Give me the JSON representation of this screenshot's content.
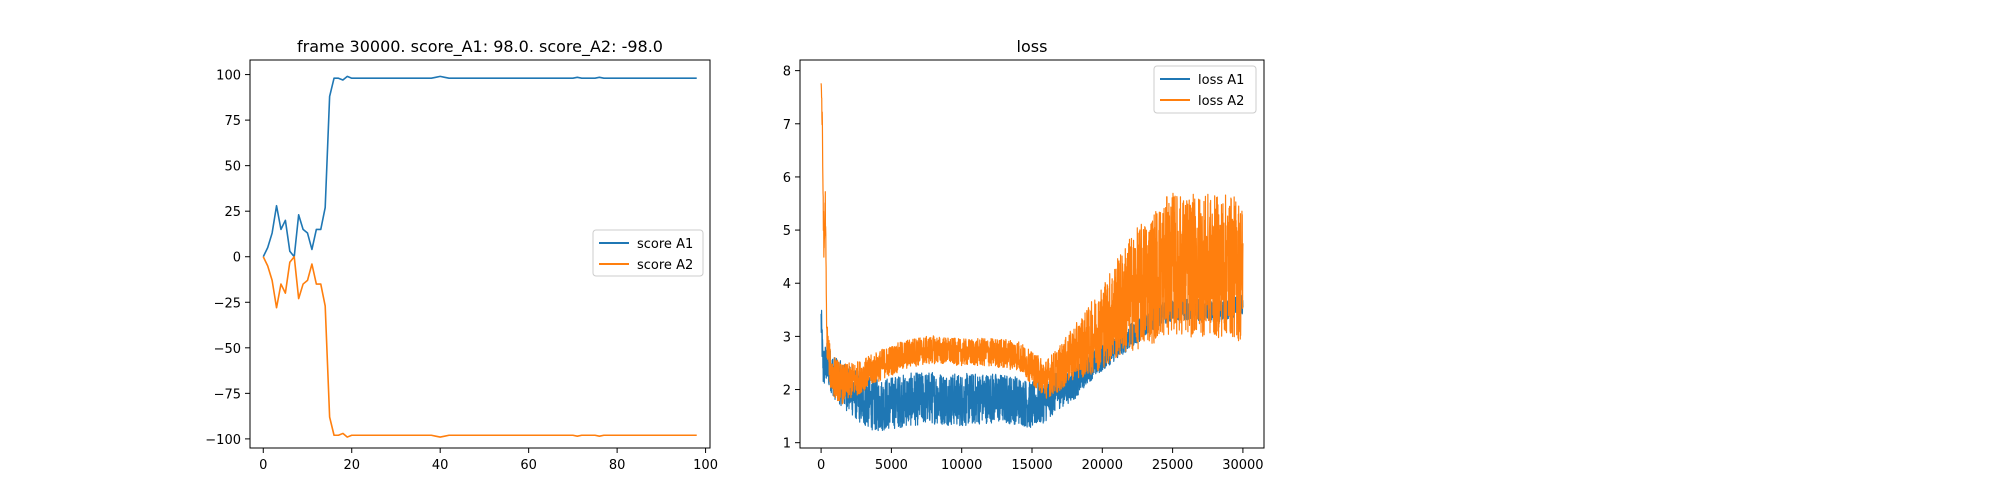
{
  "chart_data": [
    {
      "type": "line",
      "title": "frame 30000. score_A1: 98.0. score_A2: -98.0",
      "xlabel": "",
      "ylabel": "",
      "xlim": [
        -3,
        101
      ],
      "ylim": [
        -105,
        108
      ],
      "x_ticks": [
        0,
        20,
        40,
        60,
        80,
        100
      ],
      "y_ticks": [
        -100,
        -75,
        -50,
        -25,
        0,
        25,
        50,
        75,
        100
      ],
      "x_tick_labels": [
        "0",
        "20",
        "40",
        "60",
        "80",
        "100"
      ],
      "y_tick_labels": [
        "−100",
        "−75",
        "−50",
        "−25",
        "0",
        "25",
        "50",
        "75",
        "100"
      ],
      "legend": {
        "position": "center-right"
      },
      "series": [
        {
          "name": "score A1",
          "color": "#1f77b4",
          "points": [
            [
              0,
              0
            ],
            [
              1,
              5
            ],
            [
              2,
              13
            ],
            [
              3,
              28
            ],
            [
              4,
              15
            ],
            [
              5,
              20
            ],
            [
              6,
              3
            ],
            [
              7,
              0
            ],
            [
              8,
              23
            ],
            [
              9,
              15
            ],
            [
              10,
              13
            ],
            [
              11,
              4
            ],
            [
              12,
              15
            ],
            [
              13,
              15
            ],
            [
              14,
              27
            ],
            [
              15,
              88
            ],
            [
              16,
              98
            ],
            [
              17,
              98
            ],
            [
              18,
              97
            ],
            [
              19,
              99
            ],
            [
              20,
              98
            ],
            [
              25,
              98
            ],
            [
              30,
              98
            ],
            [
              35,
              98
            ],
            [
              38,
              98
            ],
            [
              39,
              98.5
            ],
            [
              40,
              99
            ],
            [
              41,
              98.5
            ],
            [
              42,
              98
            ],
            [
              45,
              98
            ],
            [
              50,
              98
            ],
            [
              55,
              98
            ],
            [
              60,
              98
            ],
            [
              65,
              98
            ],
            [
              70,
              98
            ],
            [
              71,
              98.5
            ],
            [
              72,
              98
            ],
            [
              75,
              98
            ],
            [
              76,
              98.5
            ],
            [
              77,
              98
            ],
            [
              80,
              98
            ],
            [
              85,
              98
            ],
            [
              90,
              98
            ],
            [
              95,
              98
            ],
            [
              98,
              98
            ]
          ]
        },
        {
          "name": "score A2",
          "color": "#ff7f0e",
          "points": [
            [
              0,
              0
            ],
            [
              1,
              -5
            ],
            [
              2,
              -13
            ],
            [
              3,
              -28
            ],
            [
              4,
              -15
            ],
            [
              5,
              -20
            ],
            [
              6,
              -3
            ],
            [
              7,
              0
            ],
            [
              8,
              -23
            ],
            [
              9,
              -15
            ],
            [
              10,
              -13
            ],
            [
              11,
              -4
            ],
            [
              12,
              -15
            ],
            [
              13,
              -15
            ],
            [
              14,
              -27
            ],
            [
              15,
              -88
            ],
            [
              16,
              -98
            ],
            [
              17,
              -98
            ],
            [
              18,
              -97
            ],
            [
              19,
              -99
            ],
            [
              20,
              -98
            ],
            [
              25,
              -98
            ],
            [
              30,
              -98
            ],
            [
              35,
              -98
            ],
            [
              38,
              -98
            ],
            [
              39,
              -98.5
            ],
            [
              40,
              -99
            ],
            [
              41,
              -98.5
            ],
            [
              42,
              -98
            ],
            [
              45,
              -98
            ],
            [
              50,
              -98
            ],
            [
              55,
              -98
            ],
            [
              60,
              -98
            ],
            [
              65,
              -98
            ],
            [
              70,
              -98
            ],
            [
              71,
              -98.5
            ],
            [
              72,
              -98
            ],
            [
              75,
              -98
            ],
            [
              76,
              -98.5
            ],
            [
              77,
              -98
            ],
            [
              80,
              -98
            ],
            [
              85,
              -98
            ],
            [
              90,
              -98
            ],
            [
              95,
              -98
            ],
            [
              98,
              -98
            ]
          ]
        }
      ]
    },
    {
      "type": "line",
      "title": "loss",
      "xlabel": "",
      "ylabel": "",
      "xlim": [
        -1500,
        31500
      ],
      "ylim": [
        0.9,
        8.2
      ],
      "x_ticks": [
        0,
        5000,
        10000,
        15000,
        20000,
        25000,
        30000
      ],
      "y_ticks": [
        1,
        2,
        3,
        4,
        5,
        6,
        7,
        8
      ],
      "x_tick_labels": [
        "0",
        "5000",
        "10000",
        "15000",
        "20000",
        "25000",
        "30000"
      ],
      "y_tick_labels": [
        "1",
        "2",
        "3",
        "4",
        "5",
        "6",
        "7",
        "8"
      ],
      "legend": {
        "position": "top-right"
      },
      "series": [
        {
          "name": "loss A1",
          "color": "#1f77b4",
          "mean": [
            [
              0,
              3.3
            ],
            [
              150,
              2.4
            ],
            [
              400,
              2.5
            ],
            [
              1000,
              2.2
            ],
            [
              2000,
              2.0
            ],
            [
              3000,
              1.8
            ],
            [
              4000,
              1.7
            ],
            [
              5000,
              1.75
            ],
            [
              6000,
              1.8
            ],
            [
              8000,
              1.85
            ],
            [
              10000,
              1.8
            ],
            [
              12000,
              1.85
            ],
            [
              14000,
              1.8
            ],
            [
              15000,
              1.7
            ],
            [
              16000,
              1.8
            ],
            [
              17000,
              2.0
            ],
            [
              18000,
              2.1
            ],
            [
              19000,
              2.4
            ],
            [
              20000,
              2.6
            ],
            [
              21000,
              2.8
            ],
            [
              22000,
              3.0
            ],
            [
              23000,
              3.2
            ],
            [
              24000,
              3.4
            ],
            [
              25000,
              3.5
            ],
            [
              26000,
              3.5
            ],
            [
              27000,
              3.5
            ],
            [
              28000,
              3.45
            ],
            [
              29000,
              3.5
            ],
            [
              30000,
              3.6
            ]
          ],
          "noise": [
            [
              0,
              0.4
            ],
            [
              1000,
              0.4
            ],
            [
              2000,
              0.45
            ],
            [
              3000,
              0.5
            ],
            [
              10000,
              0.5
            ],
            [
              15000,
              0.45
            ],
            [
              18000,
              0.3
            ],
            [
              20000,
              0.25
            ],
            [
              25000,
              0.2
            ],
            [
              30000,
              0.2
            ]
          ]
        },
        {
          "name": "loss A2",
          "color": "#ff7f0e",
          "mean": [
            [
              0,
              7.9
            ],
            [
              80,
              7.0
            ],
            [
              200,
              4.5
            ],
            [
              300,
              5.5
            ],
            [
              400,
              3.0
            ],
            [
              700,
              2.3
            ],
            [
              1500,
              2.1
            ],
            [
              2500,
              2.2
            ],
            [
              3500,
              2.35
            ],
            [
              4500,
              2.5
            ],
            [
              5500,
              2.6
            ],
            [
              6500,
              2.7
            ],
            [
              8000,
              2.75
            ],
            [
              10000,
              2.7
            ],
            [
              12000,
              2.7
            ],
            [
              14000,
              2.65
            ],
            [
              15000,
              2.4
            ],
            [
              16000,
              2.2
            ],
            [
              17000,
              2.4
            ],
            [
              18000,
              2.7
            ],
            [
              19000,
              2.9
            ],
            [
              20000,
              3.2
            ],
            [
              21000,
              3.5
            ],
            [
              22000,
              3.8
            ],
            [
              23000,
              4.0
            ],
            [
              24000,
              4.2
            ],
            [
              25000,
              4.4
            ],
            [
              26000,
              4.3
            ],
            [
              27000,
              4.35
            ],
            [
              28000,
              4.3
            ],
            [
              29000,
              4.35
            ],
            [
              30000,
              4.2
            ]
          ],
          "noise": [
            [
              0,
              0.3
            ],
            [
              1000,
              0.4
            ],
            [
              3000,
              0.3
            ],
            [
              10000,
              0.25
            ],
            [
              15000,
              0.3
            ],
            [
              18000,
              0.5
            ],
            [
              20000,
              0.8
            ],
            [
              22000,
              1.1
            ],
            [
              24000,
              1.3
            ],
            [
              26000,
              1.35
            ],
            [
              30000,
              1.35
            ]
          ]
        }
      ]
    }
  ]
}
